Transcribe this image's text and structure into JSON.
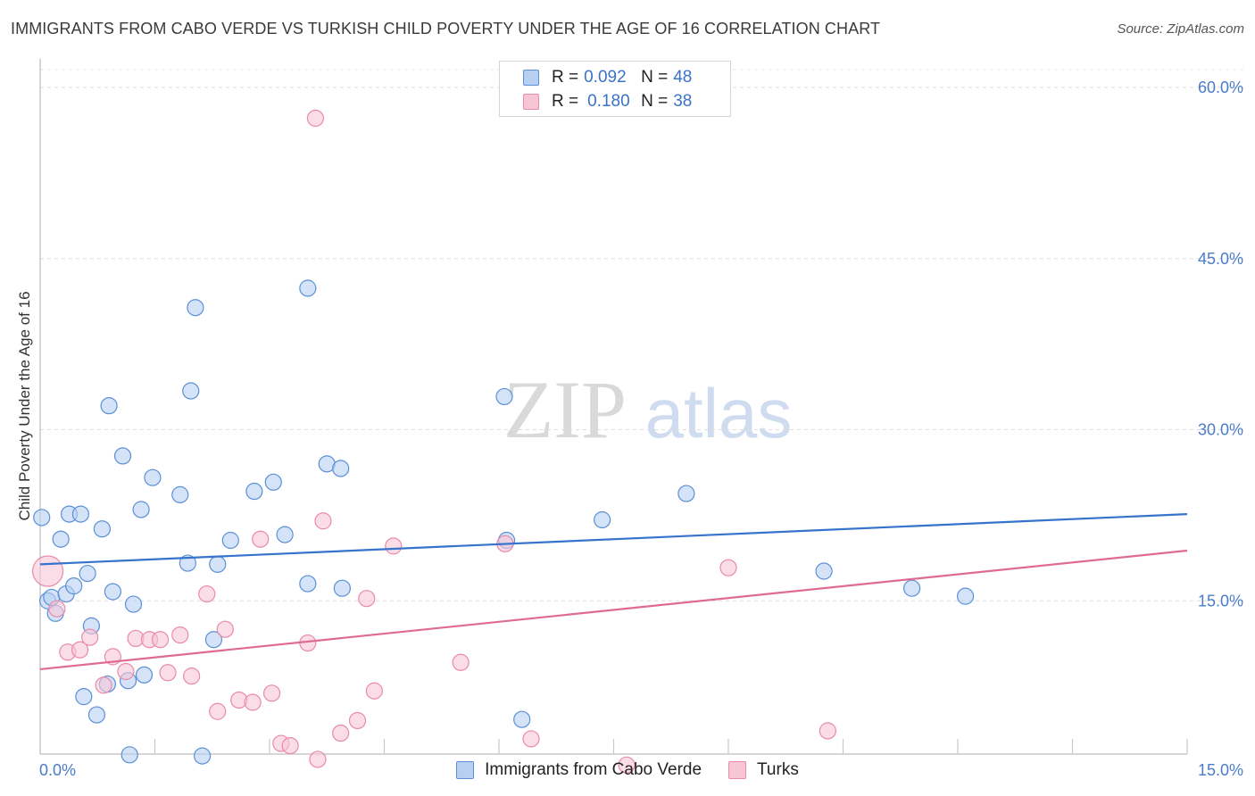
{
  "title": "IMMIGRANTS FROM CABO VERDE VS TURKISH CHILD POVERTY UNDER THE AGE OF 16 CORRELATION CHART",
  "source": "Source: ZipAtlas.com",
  "watermark": {
    "zip": "ZIP",
    "atlas": "atlas"
  },
  "legend": {
    "r_label": "R =",
    "n_label": "N =",
    "rows": [
      {
        "r": "0.092",
        "n": "48"
      },
      {
        "r": "0.180",
        "n": "38"
      }
    ]
  },
  "chart_data": {
    "type": "scatter",
    "title": "IMMIGRANTS FROM CABO VERDE VS TURKISH CHILD POVERTY UNDER THE AGE OF 16 CORRELATION CHART",
    "xlabel": "",
    "ylabel": "Child Poverty Under the Age of 16",
    "xlim": [
      0,
      15
    ],
    "ylim": [
      0,
      60
    ],
    "x_tick_labels": [
      "0.0%",
      "15.0%"
    ],
    "y_ticks": [
      15,
      30,
      45,
      60
    ],
    "y_tick_labels": [
      "15.0%",
      "30.0%",
      "45.0%",
      "60.0%"
    ],
    "grid": true,
    "colors": {
      "blue": "#5b8fd6",
      "blue_fill": "#b7d0f2",
      "blue_line": "#3673cc",
      "pink": "#e98aa8",
      "pink_fill": "#f7c6d5",
      "pink_line": "#e06b92",
      "axis_text": "#4a7cc9"
    },
    "series": [
      {
        "name": "Immigrants from Cabo Verde",
        "trend": {
          "x": [
            0,
            15
          ],
          "y": [
            18.2,
            22.6
          ]
        },
        "points": [
          {
            "x": 0.02,
            "y": 22.3
          },
          {
            "x": 0.1,
            "y": 15.0
          },
          {
            "x": 0.15,
            "y": 15.3
          },
          {
            "x": 0.2,
            "y": 13.9
          },
          {
            "x": 0.27,
            "y": 20.4
          },
          {
            "x": 0.34,
            "y": 15.6
          },
          {
            "x": 0.38,
            "y": 22.6
          },
          {
            "x": 0.44,
            "y": 16.3
          },
          {
            "x": 0.53,
            "y": 22.6
          },
          {
            "x": 0.57,
            "y": 6.6
          },
          {
            "x": 0.62,
            "y": 17.4
          },
          {
            "x": 0.67,
            "y": 12.8
          },
          {
            "x": 0.74,
            "y": 5.0
          },
          {
            "x": 0.81,
            "y": 21.3
          },
          {
            "x": 0.88,
            "y": 7.7
          },
          {
            "x": 0.9,
            "y": 32.1
          },
          {
            "x": 0.95,
            "y": 15.8
          },
          {
            "x": 1.08,
            "y": 27.7
          },
          {
            "x": 1.15,
            "y": 8.0
          },
          {
            "x": 1.17,
            "y": 1.5
          },
          {
            "x": 1.22,
            "y": 14.7
          },
          {
            "x": 1.32,
            "y": 23.0
          },
          {
            "x": 1.36,
            "y": 8.5
          },
          {
            "x": 1.47,
            "y": 25.8
          },
          {
            "x": 1.83,
            "y": 24.3
          },
          {
            "x": 1.93,
            "y": 18.3
          },
          {
            "x": 1.97,
            "y": 33.4
          },
          {
            "x": 2.03,
            "y": 40.7
          },
          {
            "x": 2.12,
            "y": 1.4
          },
          {
            "x": 2.27,
            "y": 11.6
          },
          {
            "x": 2.32,
            "y": 18.2
          },
          {
            "x": 2.49,
            "y": 20.3
          },
          {
            "x": 2.8,
            "y": 24.6
          },
          {
            "x": 3.05,
            "y": 25.4
          },
          {
            "x": 3.2,
            "y": 20.8
          },
          {
            "x": 3.5,
            "y": 16.5
          },
          {
            "x": 3.5,
            "y": 42.4
          },
          {
            "x": 3.75,
            "y": 27.0
          },
          {
            "x": 3.93,
            "y": 26.6
          },
          {
            "x": 3.95,
            "y": 16.1
          },
          {
            "x": 6.07,
            "y": 32.9
          },
          {
            "x": 6.1,
            "y": 20.3
          },
          {
            "x": 6.3,
            "y": 4.6
          },
          {
            "x": 7.35,
            "y": 22.1
          },
          {
            "x": 8.45,
            "y": 24.4
          },
          {
            "x": 10.25,
            "y": 17.6
          },
          {
            "x": 11.4,
            "y": 16.1
          },
          {
            "x": 12.1,
            "y": 15.4
          }
        ]
      },
      {
        "name": "Turks",
        "trend": {
          "x": [
            0,
            15
          ],
          "y": [
            9.0,
            19.4
          ]
        },
        "points": [
          {
            "x": 0.1,
            "y": 17.6,
            "big": true
          },
          {
            "x": 0.22,
            "y": 14.3
          },
          {
            "x": 0.36,
            "y": 10.5
          },
          {
            "x": 0.52,
            "y": 10.7
          },
          {
            "x": 0.65,
            "y": 11.8
          },
          {
            "x": 0.83,
            "y": 7.6
          },
          {
            "x": 0.95,
            "y": 10.1
          },
          {
            "x": 1.12,
            "y": 8.8
          },
          {
            "x": 1.25,
            "y": 11.7
          },
          {
            "x": 1.43,
            "y": 11.6
          },
          {
            "x": 1.57,
            "y": 11.6
          },
          {
            "x": 1.67,
            "y": 8.7
          },
          {
            "x": 1.83,
            "y": 12.0
          },
          {
            "x": 1.98,
            "y": 8.4
          },
          {
            "x": 2.18,
            "y": 15.6
          },
          {
            "x": 2.32,
            "y": 5.3
          },
          {
            "x": 2.42,
            "y": 12.5
          },
          {
            "x": 2.6,
            "y": 6.3
          },
          {
            "x": 2.78,
            "y": 6.1
          },
          {
            "x": 2.88,
            "y": 20.4
          },
          {
            "x": 3.03,
            "y": 6.9
          },
          {
            "x": 3.15,
            "y": 2.5
          },
          {
            "x": 3.27,
            "y": 2.3
          },
          {
            "x": 3.5,
            "y": 11.3
          },
          {
            "x": 3.6,
            "y": 57.3
          },
          {
            "x": 3.63,
            "y": 1.1
          },
          {
            "x": 3.7,
            "y": 22.0
          },
          {
            "x": 3.93,
            "y": 3.4
          },
          {
            "x": 4.15,
            "y": 4.5
          },
          {
            "x": 4.27,
            "y": 15.2
          },
          {
            "x": 4.37,
            "y": 7.1
          },
          {
            "x": 4.62,
            "y": 19.8
          },
          {
            "x": 5.5,
            "y": 9.6
          },
          {
            "x": 6.08,
            "y": 20.0
          },
          {
            "x": 6.42,
            "y": 2.9
          },
          {
            "x": 7.67,
            "y": 0.6
          },
          {
            "x": 9.0,
            "y": 17.9
          },
          {
            "x": 10.3,
            "y": 3.6
          }
        ]
      }
    ]
  }
}
